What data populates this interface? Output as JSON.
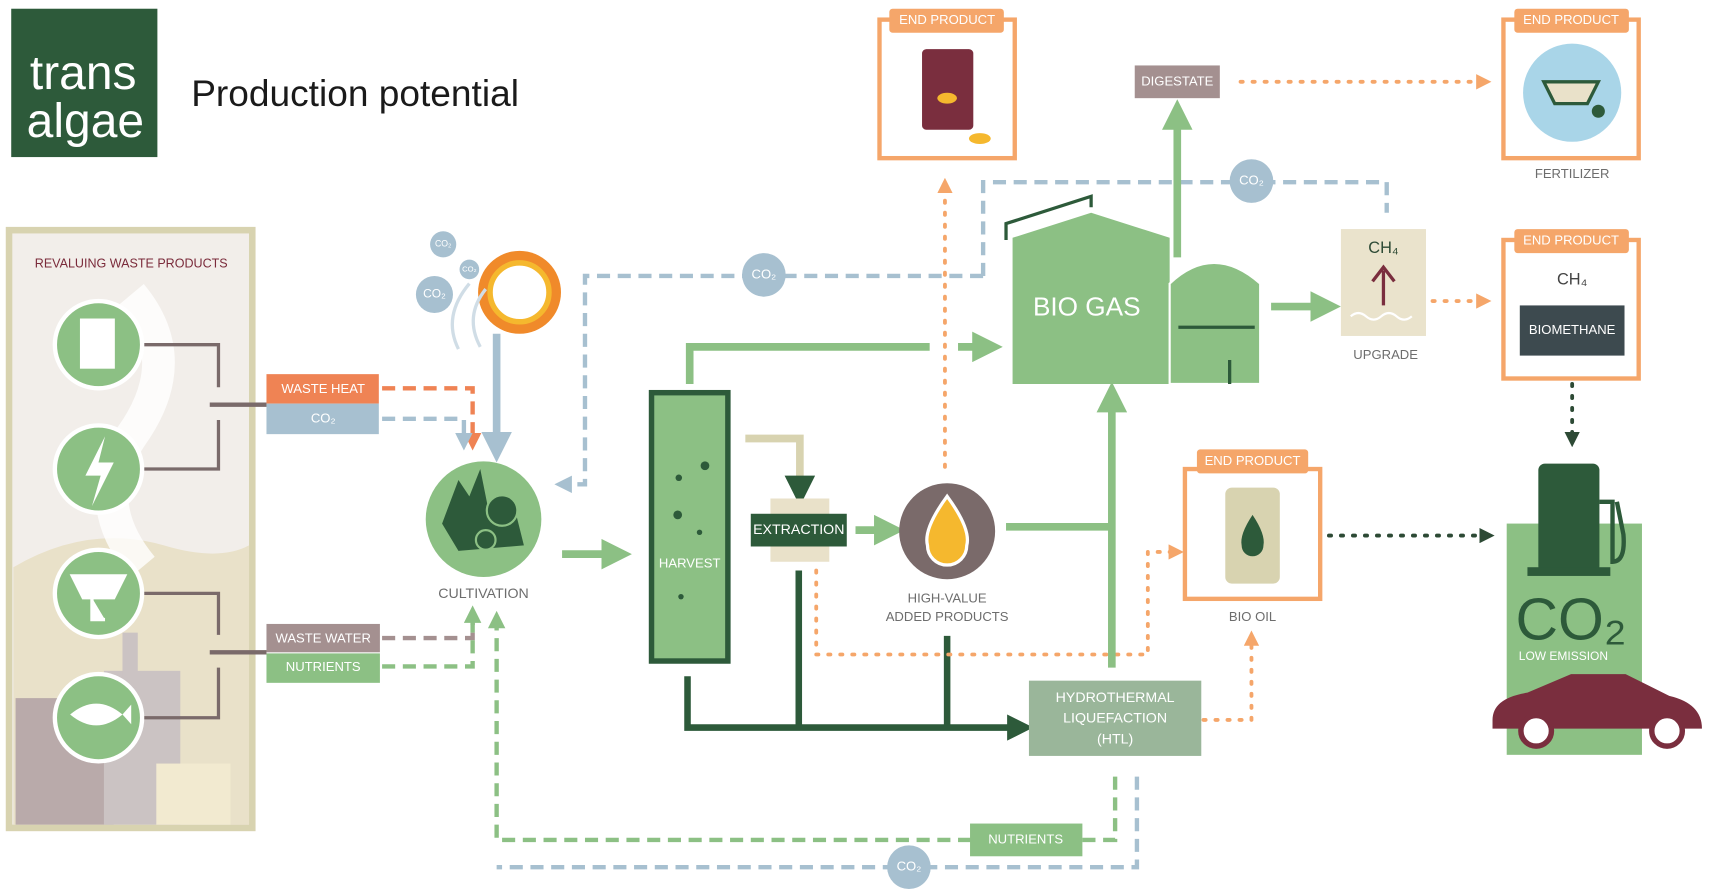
{
  "header": {
    "logo": [
      "trans",
      "algae"
    ],
    "title": "Production potential"
  },
  "waste_panel": {
    "title": "REVALUING WASTE PRODUCTS"
  },
  "inputs": [
    "WASTE HEAT",
    "CO₂",
    "WASTE WATER",
    "NUTRIENTS"
  ],
  "co2_bubbles": [
    "CO₂",
    "CO₂",
    "CO₂",
    "CO₂",
    "CO₂",
    "CO₂"
  ],
  "nodes": {
    "cultivation": "CULTIVATION",
    "harvest": "HARVEST",
    "extraction": "EXTRACTION",
    "high_value": [
      "HIGH-VALUE",
      "ADDED PRODUCTS"
    ],
    "bio_gas": "BIO GAS",
    "digestate": "DIGESTATE",
    "upgrade": {
      "formula": "CH₄",
      "label": "UPGRADE"
    },
    "htl": [
      "HYDROTHERMAL",
      "LIQUEFACTION",
      "(HTL)"
    ],
    "nutrients_return": "NUTRIENTS"
  },
  "end_products": [
    {
      "badge": "END PRODUCT"
    },
    {
      "badge": "END PRODUCT",
      "label": "FERTILIZER"
    },
    {
      "badge": "END PRODUCT",
      "formula": "CH₄",
      "label": "BIOMETHANE"
    },
    {
      "badge": "END PRODUCT",
      "label": "BIO OIL"
    }
  ],
  "vehicle": {
    "formula": "CO₂",
    "label": "LOW EMISSION"
  }
}
